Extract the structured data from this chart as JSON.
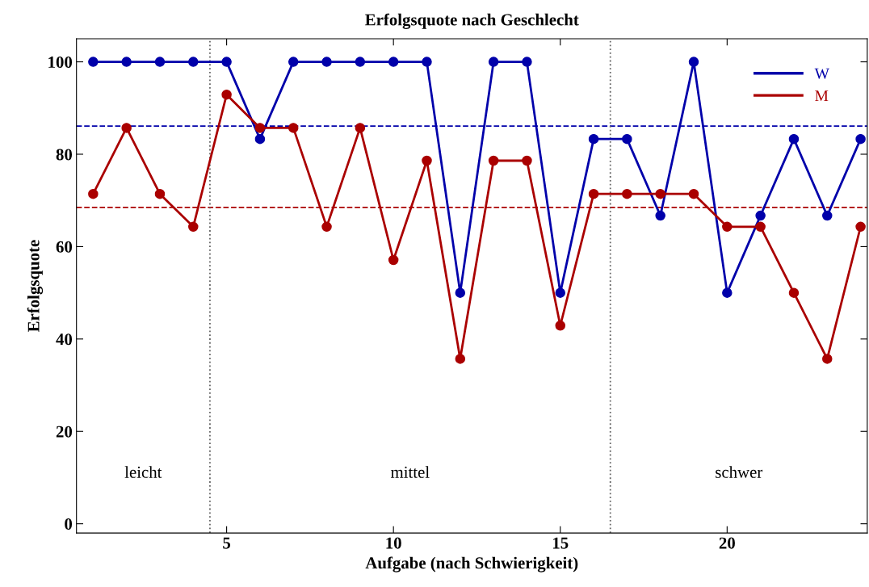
{
  "chart_data": {
    "type": "line",
    "title": "Erfolgsquote nach Geschlecht",
    "xlabel": "Aufgabe (nach Schwierigkeit)",
    "ylabel": "Erfolgsquote",
    "x": [
      1,
      2,
      3,
      4,
      5,
      6,
      7,
      8,
      9,
      10,
      11,
      12,
      13,
      14,
      15,
      16,
      17,
      18,
      19,
      20,
      21,
      22,
      23,
      24
    ],
    "series": [
      {
        "name": "W",
        "color": "#0000aa",
        "values": [
          100,
          100,
          100,
          100,
          100,
          83.3,
          100,
          100,
          100,
          100,
          100,
          50,
          100,
          100,
          50,
          83.3,
          83.3,
          66.7,
          100,
          50,
          66.7,
          83.3,
          66.7,
          83.3
        ]
      },
      {
        "name": "M",
        "color": "#aa0000",
        "values": [
          71.4,
          85.7,
          71.4,
          64.3,
          92.9,
          85.7,
          85.7,
          64.3,
          85.7,
          57.1,
          78.6,
          35.7,
          78.6,
          78.6,
          42.9,
          71.4,
          71.4,
          71.4,
          71.4,
          64.3,
          64.3,
          50,
          35.7,
          64.3
        ]
      }
    ],
    "marker": "circle",
    "line_style": "solid",
    "legend": "top right",
    "grid": false,
    "xlim": [
      0.5,
      24.2
    ],
    "ylim": [
      -2,
      105
    ],
    "xticks": [
      5,
      10,
      15,
      20
    ],
    "yticks": [
      0,
      20,
      40,
      60,
      80,
      100
    ],
    "ref_lines": [
      {
        "axis": "y",
        "value": 86.1,
        "color": "#0000aa",
        "line_style": "dashed"
      },
      {
        "axis": "y",
        "value": 68.5,
        "color": "#aa0000",
        "line_style": "dashed"
      },
      {
        "axis": "x",
        "value": 4.5,
        "color": "#666666",
        "line_style": "dotted"
      },
      {
        "axis": "x",
        "value": 16.5,
        "color": "#666666",
        "line_style": "dotted"
      }
    ],
    "annotations": [
      "leicht",
      "mittel",
      "schwer"
    ]
  }
}
